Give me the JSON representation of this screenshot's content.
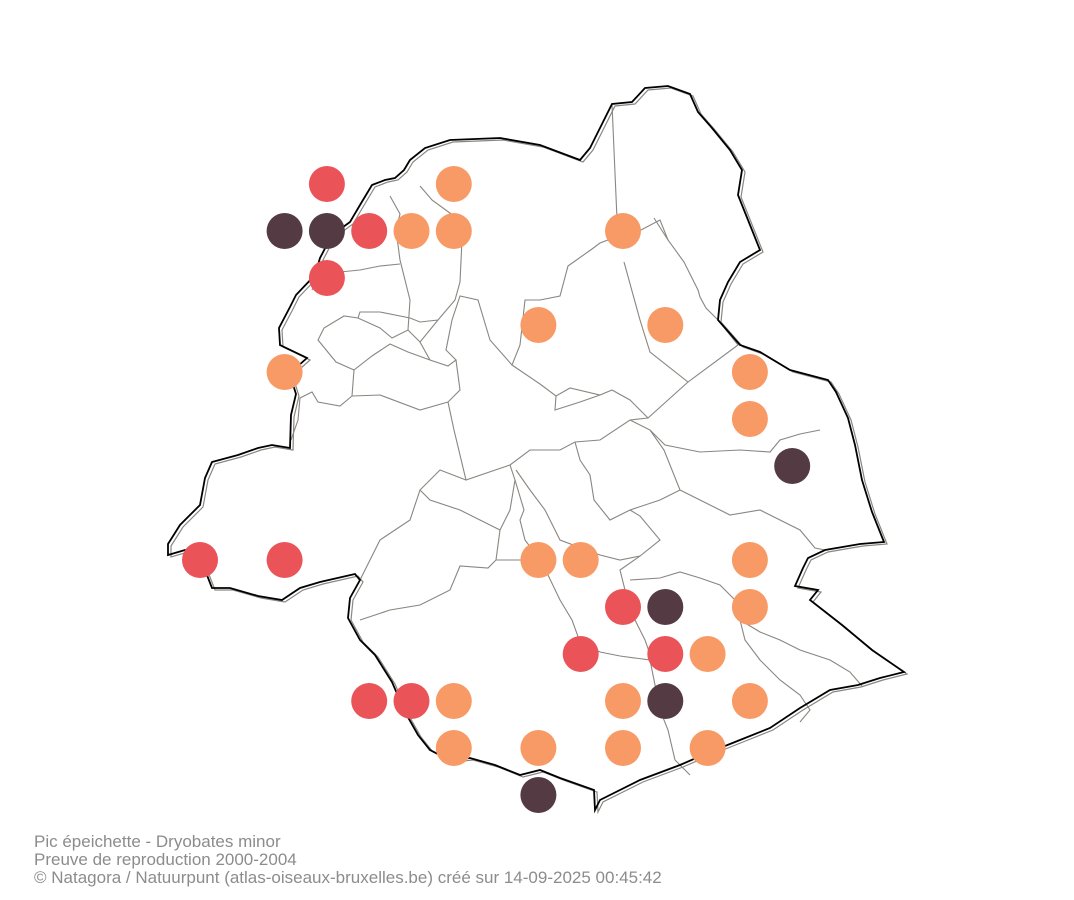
{
  "caption": {
    "line1": "Pic épeichette - Dryobates minor",
    "line2": "Preuve de reproduction 2000-2004",
    "line3": "© Natagora / Natuurpunt (atlas-oiseaux-bruxelles.be) créé sur 14-09-2025 00:45:42"
  },
  "colors": {
    "possible": "#f89a66",
    "probable": "#ea5459",
    "certain": "#533a43",
    "outline": "#000000",
    "municipal_borders": "#8a8681"
  },
  "map": {
    "region": "Bruxelles",
    "records": [
      {
        "cell": "r1c4",
        "status": "probable"
      },
      {
        "cell": "r1c7",
        "status": "possible"
      },
      {
        "cell": "r2c3",
        "status": "certain"
      },
      {
        "cell": "r2c4",
        "status": "certain"
      },
      {
        "cell": "r2c5",
        "status": "probable"
      },
      {
        "cell": "r2c6",
        "status": "possible"
      },
      {
        "cell": "r2c7",
        "status": "possible"
      },
      {
        "cell": "r2c11",
        "status": "possible"
      },
      {
        "cell": "r3c4",
        "status": "probable"
      },
      {
        "cell": "r4c9",
        "status": "possible"
      },
      {
        "cell": "r4c12",
        "status": "possible"
      },
      {
        "cell": "r5c3",
        "status": "possible"
      },
      {
        "cell": "r5c14",
        "status": "possible"
      },
      {
        "cell": "r6c14",
        "status": "possible"
      },
      {
        "cell": "r7c15",
        "status": "certain"
      },
      {
        "cell": "r9c1",
        "status": "probable"
      },
      {
        "cell": "r9c3",
        "status": "probable"
      },
      {
        "cell": "r9c9",
        "status": "possible"
      },
      {
        "cell": "r9c10",
        "status": "possible"
      },
      {
        "cell": "r9c14",
        "status": "possible"
      },
      {
        "cell": "r10c11",
        "status": "probable"
      },
      {
        "cell": "r10c12",
        "status": "certain"
      },
      {
        "cell": "r10c14",
        "status": "possible"
      },
      {
        "cell": "r11c10",
        "status": "probable"
      },
      {
        "cell": "r11c12",
        "status": "probable"
      },
      {
        "cell": "r11c13",
        "status": "possible"
      },
      {
        "cell": "r12c5",
        "status": "probable"
      },
      {
        "cell": "r12c6",
        "status": "probable"
      },
      {
        "cell": "r12c7",
        "status": "possible"
      },
      {
        "cell": "r12c11",
        "status": "possible"
      },
      {
        "cell": "r12c12",
        "status": "certain"
      },
      {
        "cell": "r12c14",
        "status": "possible"
      },
      {
        "cell": "r13c7",
        "status": "possible"
      },
      {
        "cell": "r13c9",
        "status": "possible"
      },
      {
        "cell": "r13c11",
        "status": "possible"
      },
      {
        "cell": "r13c13",
        "status": "possible"
      },
      {
        "cell": "r14c9",
        "status": "certain"
      }
    ]
  }
}
